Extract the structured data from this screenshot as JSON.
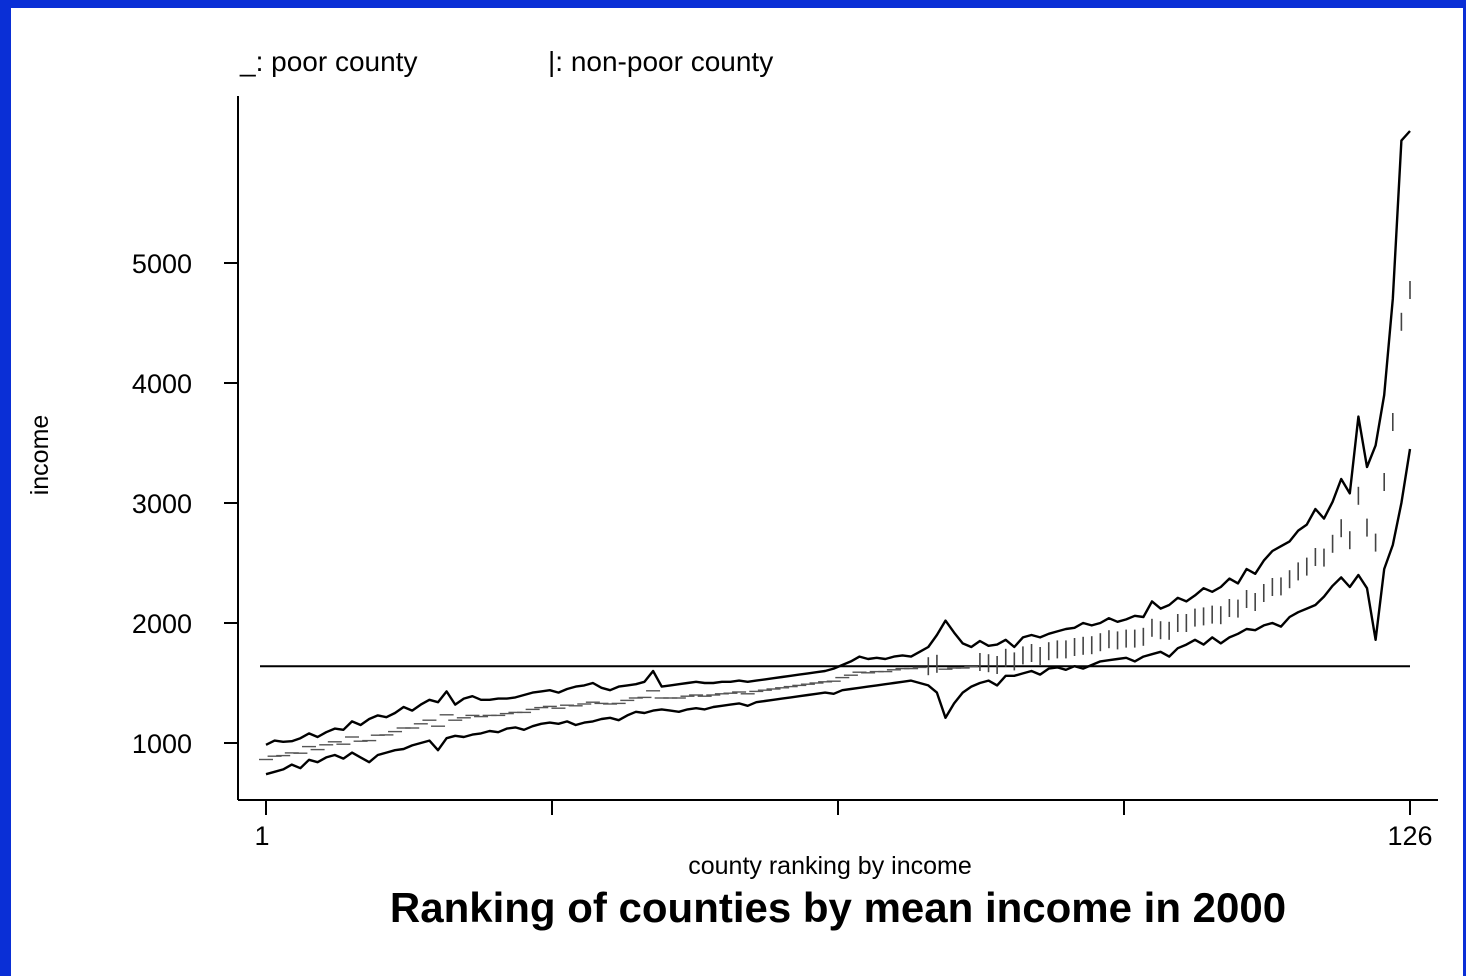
{
  "chart_data": {
    "type": "line",
    "title": "Ranking of counties by mean income in 2000",
    "xlabel": "county ranking by income",
    "ylabel": "income",
    "xlim": [
      1,
      126
    ],
    "ylim": [
      560,
      6200
    ],
    "x_tick_labels": [
      "1",
      "126"
    ],
    "y_ticks": [
      1000,
      2000,
      3000,
      4000,
      5000
    ],
    "legend": {
      "poor": "_: poor county",
      "nonpoor": "|: non-poor county"
    },
    "poverty_line": 1640,
    "upper_band": [
      985,
      1020,
      1010,
      1015,
      1040,
      1080,
      1050,
      1090,
      1120,
      1110,
      1180,
      1150,
      1200,
      1230,
      1215,
      1250,
      1300,
      1270,
      1320,
      1360,
      1340,
      1430,
      1320,
      1370,
      1390,
      1360,
      1360,
      1370,
      1370,
      1380,
      1400,
      1420,
      1430,
      1440,
      1420,
      1450,
      1470,
      1480,
      1500,
      1460,
      1440,
      1470,
      1480,
      1490,
      1510,
      1600,
      1470,
      1480,
      1490,
      1500,
      1510,
      1500,
      1500,
      1510,
      1510,
      1520,
      1510,
      1520,
      1530,
      1540,
      1550,
      1560,
      1570,
      1580,
      1590,
      1600,
      1620,
      1650,
      1680,
      1720,
      1700,
      1710,
      1700,
      1720,
      1730,
      1720,
      1760,
      1800,
      1900,
      2020,
      1920,
      1830,
      1800,
      1850,
      1810,
      1820,
      1860,
      1800,
      1880,
      1900,
      1880,
      1910,
      1930,
      1950,
      1960,
      2000,
      1980,
      2000,
      2040,
      2010,
      2030,
      2060,
      2050,
      2180,
      2120,
      2150,
      2210,
      2180,
      2230,
      2290,
      2260,
      2300,
      2370,
      2330,
      2450,
      2410,
      2520,
      2600,
      2640,
      2680,
      2770,
      2820,
      2950,
      2870,
      3010,
      3200
    ],
    "band_extension": {
      "upper": [
        3080,
        3720,
        3300,
        3480,
        3900,
        4700,
        6020,
        6100
      ],
      "lower": [
        2300,
        2400,
        2290,
        1860,
        2450,
        2650,
        3000,
        3450
      ]
    },
    "lower_band": [
      740,
      760,
      780,
      820,
      790,
      860,
      840,
      880,
      900,
      870,
      920,
      880,
      840,
      900,
      920,
      940,
      950,
      980,
      1000,
      1020,
      940,
      1040,
      1060,
      1050,
      1070,
      1080,
      1100,
      1090,
      1120,
      1130,
      1110,
      1140,
      1160,
      1170,
      1160,
      1180,
      1150,
      1170,
      1180,
      1200,
      1210,
      1190,
      1230,
      1260,
      1250,
      1270,
      1280,
      1270,
      1260,
      1280,
      1290,
      1280,
      1300,
      1310,
      1320,
      1330,
      1310,
      1340,
      1350,
      1360,
      1370,
      1380,
      1390,
      1400,
      1410,
      1420,
      1410,
      1440,
      1450,
      1460,
      1470,
      1480,
      1490,
      1500,
      1510,
      1520,
      1500,
      1480,
      1420,
      1210,
      1330,
      1420,
      1470,
      1500,
      1520,
      1480,
      1560,
      1560,
      1580,
      1600,
      1570,
      1620,
      1630,
      1610,
      1640,
      1620,
      1650,
      1680,
      1690,
      1700,
      1710,
      1680,
      1720,
      1740,
      1760,
      1720,
      1790,
      1820,
      1860,
      1820,
      1880,
      1830,
      1880,
      1910,
      1950,
      1940,
      1980,
      2000,
      1970,
      2050,
      2090,
      2120,
      2150,
      2220,
      2310,
      2380
    ]
  }
}
